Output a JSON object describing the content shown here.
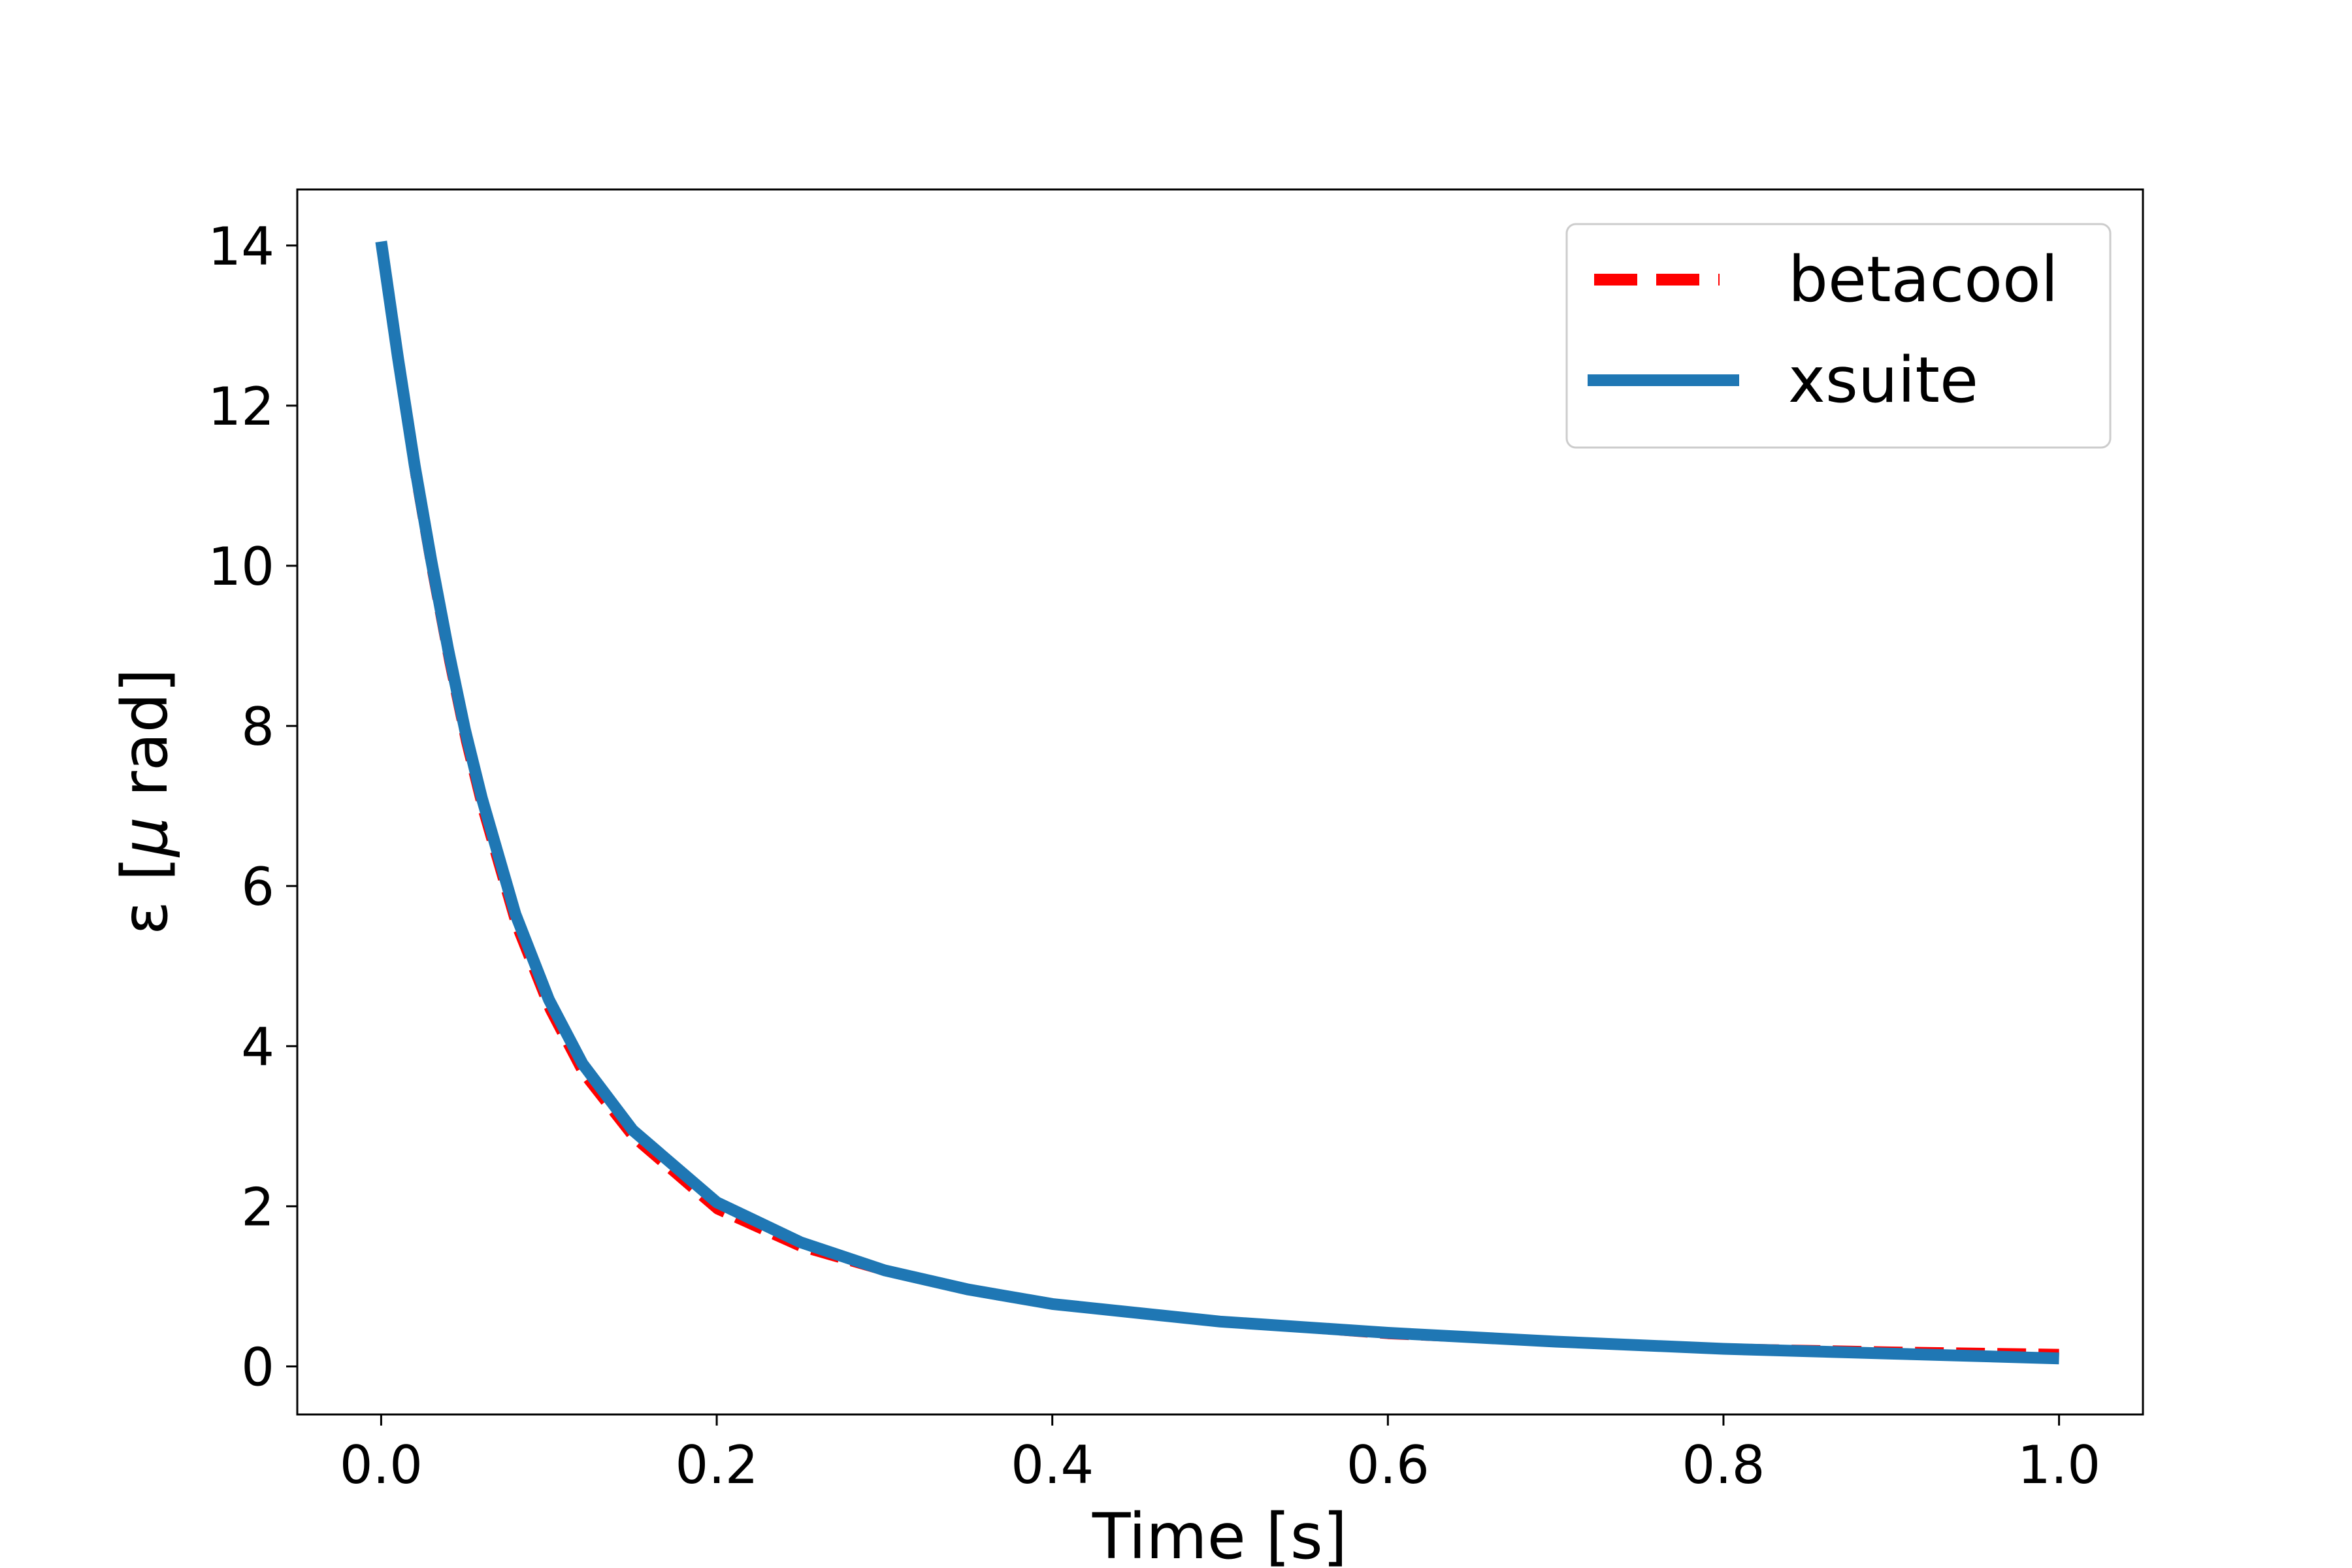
{
  "chart_data": {
    "type": "line",
    "xlabel": "Time [s]",
    "ylabel_parts": [
      "ε [",
      "μ",
      " rad]"
    ],
    "xlim": [
      -0.05,
      1.05
    ],
    "ylim": [
      -0.6,
      14.7
    ],
    "xticks": [
      0.0,
      0.2,
      0.4,
      0.6,
      0.8,
      1.0
    ],
    "xtick_labels": [
      "0.0",
      "0.2",
      "0.4",
      "0.6",
      "0.8",
      "1.0"
    ],
    "yticks": [
      0,
      2,
      4,
      6,
      8,
      10,
      12,
      14
    ],
    "ytick_labels": [
      "0",
      "2",
      "4",
      "6",
      "8",
      "10",
      "12",
      "14"
    ],
    "grid": false,
    "legend_position": "top-right",
    "series": [
      {
        "name": "betacool",
        "color": "#ff0000",
        "style": "dashed",
        "x": [
          0.0,
          0.01,
          0.02,
          0.03,
          0.04,
          0.05,
          0.06,
          0.08,
          0.1,
          0.12,
          0.15,
          0.2,
          0.25,
          0.3,
          0.35,
          0.4,
          0.5,
          0.6,
          0.7,
          0.8,
          0.9,
          1.0
        ],
        "y": [
          14.0,
          12.5,
          11.1,
          9.9,
          8.8,
          7.8,
          6.95,
          5.5,
          4.45,
          3.65,
          2.85,
          1.95,
          1.48,
          1.18,
          0.97,
          0.8,
          0.55,
          0.39,
          0.3,
          0.24,
          0.2,
          0.17
        ]
      },
      {
        "name": "xsuite",
        "color": "#1f77b4",
        "style": "solid",
        "x": [
          0.0,
          0.01,
          0.02,
          0.03,
          0.04,
          0.05,
          0.06,
          0.08,
          0.1,
          0.12,
          0.15,
          0.2,
          0.25,
          0.3,
          0.35,
          0.4,
          0.5,
          0.6,
          0.7,
          0.8,
          0.9,
          1.0
        ],
        "y": [
          14.05,
          12.6,
          11.25,
          10.05,
          8.95,
          7.95,
          7.1,
          5.65,
          4.58,
          3.78,
          2.95,
          2.05,
          1.55,
          1.2,
          0.96,
          0.78,
          0.56,
          0.42,
          0.31,
          0.22,
          0.16,
          0.1
        ]
      }
    ]
  }
}
